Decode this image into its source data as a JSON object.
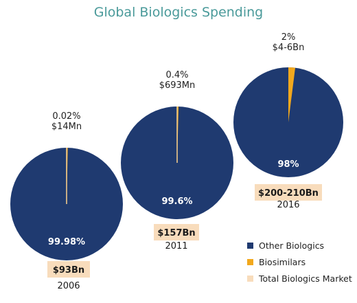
{
  "chart_data": {
    "type": "pie",
    "title": "Global Biologics Spending",
    "colors": {
      "other": "#1f3a70",
      "biosimilars": "#f2a81d",
      "total": "#f8dcbc"
    },
    "legend": {
      "placement": "bottom-right",
      "items": [
        "Other Biologics",
        "Biosimilars",
        "Total Biologics Market"
      ]
    },
    "pies": [
      {
        "year": "2006",
        "total": "$93Bn",
        "other_pct": 99.98,
        "other_label": "99.98%",
        "biosimilar_pct": 0.02,
        "biosimilar_label_pct": "0.02%",
        "biosimilar_label_value": "$14Mn"
      },
      {
        "year": "2011",
        "total": "$157Bn",
        "other_pct": 99.6,
        "other_label": "99.6%",
        "biosimilar_pct": 0.4,
        "biosimilar_label_pct": "0.4%",
        "biosimilar_label_value": "$693Mn"
      },
      {
        "year": "2016",
        "total": "$200-210Bn",
        "other_pct": 98,
        "other_label": "98%",
        "biosimilar_pct": 2,
        "biosimilar_label_pct": "2%",
        "biosimilar_label_value": "$4-6Bn"
      }
    ]
  }
}
